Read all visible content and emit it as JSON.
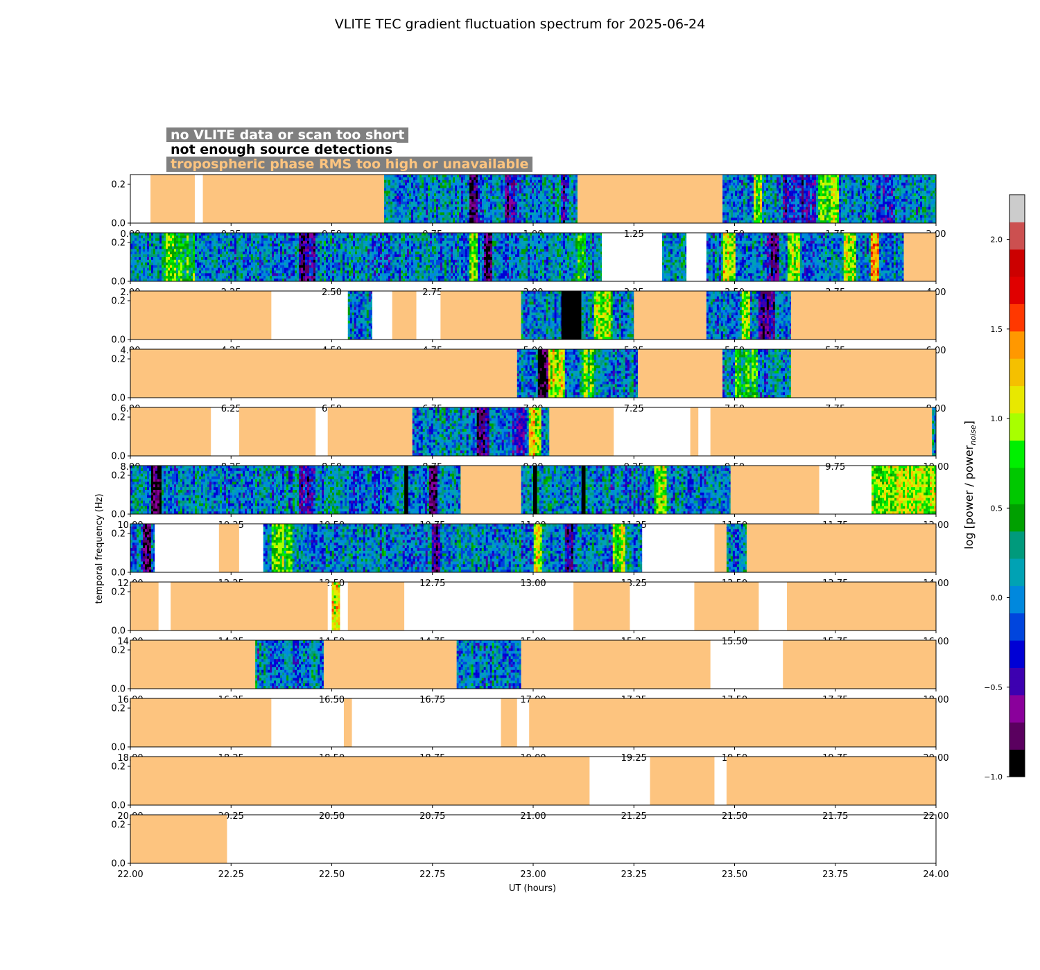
{
  "page_title": "VLITE TEC gradient fluctuation spectrum for 2025-06-24",
  "legend": {
    "no_data": "no VLITE data or scan too short",
    "no_detections": "not enough source detections",
    "tropo": "tropospheric phase RMS too high or unavailable"
  },
  "colors": {
    "tropo": "#fdc47f",
    "no_data": "#ffffff",
    "no_detections": "#000000",
    "cmap": [
      "#000000",
      "#5a005f",
      "#8a009b",
      "#3d00b0",
      "#0000d5",
      "#0045dd",
      "#0088dd",
      "#00a2b4",
      "#009a7c",
      "#00a000",
      "#00c800",
      "#00f000",
      "#a8ff00",
      "#e8e800",
      "#f5c000",
      "#ff9800",
      "#ff3800",
      "#e00000",
      "#cc0000",
      "#cc5050",
      "#cccccc"
    ]
  },
  "chart_data": {
    "type": "heatmap",
    "title": "VLITE TEC gradient fluctuation spectrum for 2025-06-24",
    "xlabel": "UT (hours)",
    "ylabel": "temporal frequency (Hz)",
    "ylim": [
      0,
      0.25
    ],
    "yticks": [
      0.0,
      0.2
    ],
    "ytick_labels": [
      "0.0",
      "0.2"
    ],
    "colorbar": {
      "label_base": "log [power / power",
      "label_sub": "noise",
      "label_close": "]",
      "range": [
        -1.0,
        2.25
      ],
      "ticks": [
        -1.0,
        -0.5,
        0.0,
        0.5,
        1.0,
        1.5,
        2.0
      ],
      "tick_labels": [
        "−1.0",
        "−0.5",
        "0.0",
        "0.5",
        "1.0",
        "1.5",
        "2.0"
      ]
    },
    "panels": [
      {
        "xlim": [
          0,
          2
        ],
        "xticks": [
          0,
          0.25,
          0.5,
          0.75,
          1.0,
          1.25,
          1.5,
          1.75,
          2.0
        ],
        "xtick_labels": [
          "0.00",
          "0.25",
          "0.50",
          "0.75",
          "1.00",
          "1.25",
          "1.50",
          "1.75",
          "2.00"
        ],
        "segments": [
          [
            "none",
            0.0,
            0.05
          ],
          [
            "tropo",
            0.05,
            0.16
          ],
          [
            "none",
            0.16,
            0.18
          ],
          [
            "tropo",
            0.18,
            0.63
          ],
          [
            "spec",
            0.63,
            1.11
          ],
          [
            "tropo",
            1.11,
            1.47
          ],
          [
            "spec",
            1.47,
            2.0
          ]
        ],
        "bands": [
          [
            0.84,
            0.86,
            -0.6
          ],
          [
            0.93,
            0.96,
            -0.5
          ],
          [
            1.07,
            1.08,
            -0.5
          ],
          [
            1.55,
            1.57,
            0.9
          ],
          [
            1.62,
            1.7,
            -0.4
          ],
          [
            1.71,
            1.76,
            0.8
          ],
          [
            1.85,
            1.9,
            -0.3
          ]
        ]
      },
      {
        "xlim": [
          2,
          4
        ],
        "xticks": [
          2,
          2.25,
          2.5,
          2.75,
          3.0,
          3.25,
          3.5,
          3.75,
          4.0
        ],
        "xtick_labels": [
          "2.00",
          "2.25",
          "2.50",
          "2.75",
          "3.00",
          "3.25",
          "3.50",
          "3.75",
          "4.00"
        ],
        "segments": [
          [
            "spec",
            2.0,
            3.17
          ],
          [
            "none",
            3.17,
            3.32
          ],
          [
            "spec",
            3.32,
            3.38
          ],
          [
            "none",
            3.38,
            3.43
          ],
          [
            "spec",
            3.43,
            3.92
          ],
          [
            "tropo",
            3.92,
            4.0
          ]
        ],
        "bands": [
          [
            2.08,
            2.16,
            0.6
          ],
          [
            2.42,
            2.46,
            -0.5
          ],
          [
            2.84,
            2.86,
            0.9
          ],
          [
            2.88,
            2.9,
            -0.7
          ],
          [
            3.11,
            3.13,
            0.8
          ],
          [
            3.47,
            3.5,
            1.0
          ],
          [
            3.58,
            3.61,
            -0.6
          ],
          [
            3.63,
            3.66,
            0.9
          ],
          [
            3.77,
            3.8,
            1.0
          ],
          [
            3.84,
            3.86,
            1.2
          ]
        ]
      },
      {
        "xlim": [
          4,
          6
        ],
        "xticks": [
          4,
          4.25,
          4.5,
          4.75,
          5.0,
          5.25,
          5.5,
          5.75,
          6.0
        ],
        "xtick_labels": [
          "4.00",
          "4.25",
          "4.50",
          "4.75",
          "5.00",
          "5.25",
          "5.50",
          "5.75",
          "6.00"
        ],
        "segments": [
          [
            "tropo",
            4.0,
            4.35
          ],
          [
            "none",
            4.35,
            4.54
          ],
          [
            "spec",
            4.54,
            4.6
          ],
          [
            "none",
            4.6,
            4.65
          ],
          [
            "tropo",
            4.65,
            4.71
          ],
          [
            "none",
            4.71,
            4.77
          ],
          [
            "tropo",
            4.77,
            4.97
          ],
          [
            "spec",
            4.97,
            5.07
          ],
          [
            "nodet",
            5.07,
            5.12
          ],
          [
            "spec",
            5.12,
            5.25
          ],
          [
            "tropo",
            5.25,
            5.43
          ],
          [
            "spec",
            5.43,
            5.64
          ],
          [
            "tropo",
            5.64,
            6.0
          ]
        ],
        "bands": [
          [
            5.15,
            5.2,
            0.8
          ],
          [
            5.52,
            5.54,
            1.0
          ],
          [
            5.56,
            5.6,
            -0.6
          ]
        ]
      },
      {
        "xlim": [
          6,
          8
        ],
        "xticks": [
          6,
          6.25,
          6.5,
          6.75,
          7.0,
          7.25,
          7.5,
          7.75,
          8.0
        ],
        "xtick_labels": [
          "6.00",
          "6.25",
          "6.50",
          "6.75",
          "7.00",
          "7.25",
          "7.50",
          "7.75",
          "8.00"
        ],
        "segments": [
          [
            "tropo",
            6.0,
            6.96
          ],
          [
            "spec",
            6.96,
            7.26
          ],
          [
            "tropo",
            7.26,
            7.47
          ],
          [
            "spec",
            7.47,
            7.64
          ],
          [
            "tropo",
            7.64,
            8.0
          ]
        ],
        "bands": [
          [
            7.01,
            7.04,
            -0.8
          ],
          [
            7.04,
            7.08,
            1.0
          ],
          [
            7.12,
            7.15,
            0.7
          ],
          [
            7.5,
            7.56,
            0.6
          ]
        ]
      },
      {
        "xlim": [
          8,
          10
        ],
        "xticks": [
          8,
          8.25,
          8.5,
          8.75,
          9.0,
          9.25,
          9.5,
          9.75,
          10.0
        ],
        "xtick_labels": [
          "8.00",
          "8.25",
          "8.50",
          "8.75",
          "9.00",
          "9.25",
          "9.50",
          "9.75",
          "10.00"
        ],
        "segments": [
          [
            "tropo",
            8.0,
            8.2
          ],
          [
            "none",
            8.2,
            8.27
          ],
          [
            "tropo",
            8.27,
            8.46
          ],
          [
            "none",
            8.46,
            8.49
          ],
          [
            "tropo",
            8.49,
            8.7
          ],
          [
            "spec",
            8.7,
            9.04
          ],
          [
            "tropo",
            9.04,
            9.2
          ],
          [
            "none",
            9.2,
            9.39
          ],
          [
            "tropo",
            9.39,
            9.41
          ],
          [
            "none",
            9.41,
            9.44
          ],
          [
            "tropo",
            9.44,
            9.99
          ],
          [
            "spec",
            9.99,
            10.0
          ]
        ],
        "bands": [
          [
            8.86,
            8.89,
            -0.6
          ],
          [
            8.95,
            8.98,
            -0.4
          ],
          [
            8.99,
            9.02,
            1.0
          ]
        ]
      },
      {
        "xlim": [
          10,
          12
        ],
        "xticks": [
          10,
          10.25,
          10.5,
          10.75,
          11.0,
          11.25,
          11.5,
          11.75,
          12.0
        ],
        "xtick_labels": [
          "10.00",
          "10.25",
          "10.50",
          "10.75",
          "11.00",
          "11.25",
          "11.50",
          "11.75",
          "12.00"
        ],
        "segments": [
          [
            "spec",
            10.0,
            10.68
          ],
          [
            "nodet",
            10.68,
            10.69
          ],
          [
            "spec",
            10.69,
            10.82
          ],
          [
            "tropo",
            10.82,
            10.97
          ],
          [
            "spec",
            10.97,
            11.0
          ],
          [
            "nodet",
            11.0,
            11.01
          ],
          [
            "spec",
            11.01,
            11.12
          ],
          [
            "nodet",
            11.12,
            11.13
          ],
          [
            "spec",
            11.13,
            11.49
          ],
          [
            "tropo",
            11.49,
            11.71
          ],
          [
            "none",
            11.71,
            11.84
          ],
          [
            "spec",
            11.84,
            12.0
          ]
        ],
        "bands": [
          [
            10.05,
            10.08,
            -0.8
          ],
          [
            10.42,
            10.46,
            -0.5
          ],
          [
            10.74,
            10.76,
            -0.7
          ],
          [
            11.3,
            11.33,
            0.8
          ],
          [
            11.84,
            12.0,
            0.95
          ]
        ]
      },
      {
        "xlim": [
          12,
          14
        ],
        "xticks": [
          12,
          12.25,
          12.5,
          12.75,
          13.0,
          13.25,
          13.5,
          13.75,
          14.0
        ],
        "xtick_labels": [
          "12.00",
          "12.25",
          "12.50",
          "12.75",
          "13.00",
          "13.25",
          "13.50",
          "13.75",
          "14.00"
        ],
        "segments": [
          [
            "spec",
            12.0,
            12.06
          ],
          [
            "none",
            12.06,
            12.22
          ],
          [
            "tropo",
            12.22,
            12.27
          ],
          [
            "none",
            12.27,
            12.33
          ],
          [
            "spec",
            12.33,
            13.27
          ],
          [
            "none",
            12.27,
            12.27
          ],
          [
            "none",
            13.27,
            13.45
          ],
          [
            "tropo",
            13.45,
            13.48
          ],
          [
            "spec",
            13.48,
            13.53
          ],
          [
            "tropo",
            13.53,
            14.0
          ]
        ],
        "bands": [
          [
            12.03,
            12.05,
            -0.8
          ],
          [
            12.35,
            12.4,
            0.7
          ],
          [
            12.75,
            12.77,
            -0.6
          ],
          [
            13.0,
            13.02,
            1.0
          ],
          [
            13.08,
            13.1,
            -0.6
          ],
          [
            13.2,
            13.23,
            0.8
          ]
        ]
      },
      {
        "xlim": [
          14,
          16
        ],
        "xticks": [
          14,
          14.25,
          14.5,
          14.75,
          15.0,
          15.25,
          15.5,
          15.75,
          16.0
        ],
        "xtick_labels": [
          "14.00",
          "14.25",
          "14.50",
          "14.75",
          "15.00",
          "15.25",
          "15.50",
          "15.75",
          "16.00"
        ],
        "segments": [
          [
            "tropo",
            14.0,
            14.07
          ],
          [
            "none",
            14.07,
            14.1
          ],
          [
            "tropo",
            14.1,
            14.49
          ],
          [
            "none",
            14.49,
            14.5
          ],
          [
            "spec",
            14.5,
            14.52
          ],
          [
            "none",
            14.52,
            14.54
          ],
          [
            "tropo",
            14.54,
            14.68
          ],
          [
            "none",
            14.68,
            15.1
          ],
          [
            "tropo",
            15.1,
            15.24
          ],
          [
            "none",
            15.24,
            15.4
          ],
          [
            "tropo",
            15.4,
            15.56
          ],
          [
            "none",
            15.56,
            15.63
          ],
          [
            "tropo",
            15.63,
            16.0
          ]
        ],
        "bands": [
          [
            14.5,
            14.52,
            1.0
          ]
        ]
      },
      {
        "xlim": [
          16,
          18
        ],
        "xticks": [
          16,
          16.25,
          16.5,
          16.75,
          17.0,
          17.25,
          17.5,
          17.75,
          18.0
        ],
        "xtick_labels": [
          "16.00",
          "16.25",
          "16.50",
          "16.75",
          "17.00",
          "17.25",
          "17.50",
          "17.75",
          "18.00"
        ],
        "segments": [
          [
            "tropo",
            16.0,
            16.31
          ],
          [
            "spec",
            16.31,
            16.48
          ],
          [
            "tropo",
            16.48,
            16.81
          ],
          [
            "spec",
            16.81,
            16.97
          ],
          [
            "tropo",
            16.97,
            17.44
          ],
          [
            "none",
            17.44,
            17.62
          ],
          [
            "tropo",
            17.62,
            18.0
          ]
        ],
        "bands": []
      },
      {
        "xlim": [
          18,
          20
        ],
        "xticks": [
          18,
          18.25,
          18.5,
          18.75,
          19.0,
          19.25,
          19.5,
          19.75,
          20.0
        ],
        "xtick_labels": [
          "18.00",
          "18.25",
          "18.50",
          "18.75",
          "19.00",
          "19.25",
          "19.50",
          "19.75",
          "20.00"
        ],
        "segments": [
          [
            "tropo",
            18.0,
            18.35
          ],
          [
            "none",
            18.35,
            18.53
          ],
          [
            "tropo",
            18.53,
            18.55
          ],
          [
            "none",
            18.55,
            18.92
          ],
          [
            "tropo",
            18.92,
            18.96
          ],
          [
            "none",
            18.96,
            18.99
          ],
          [
            "tropo",
            18.99,
            20.0
          ]
        ],
        "bands": []
      },
      {
        "xlim": [
          20,
          22
        ],
        "xticks": [
          20,
          20.25,
          20.5,
          20.75,
          21.0,
          21.25,
          21.5,
          21.75,
          22.0
        ],
        "xtick_labels": [
          "20.00",
          "20.25",
          "20.50",
          "20.75",
          "21.00",
          "21.25",
          "21.50",
          "21.75",
          "22.00"
        ],
        "segments": [
          [
            "tropo",
            20.0,
            21.14
          ],
          [
            "none",
            21.14,
            21.29
          ],
          [
            "tropo",
            21.29,
            21.45
          ],
          [
            "none",
            21.45,
            21.48
          ],
          [
            "tropo",
            21.48,
            22.0
          ]
        ],
        "bands": []
      },
      {
        "xlim": [
          22,
          24
        ],
        "xticks": [
          22,
          22.25,
          22.5,
          22.75,
          23.0,
          23.25,
          23.5,
          23.75,
          24.0
        ],
        "xtick_labels": [
          "22.00",
          "22.25",
          "22.50",
          "22.75",
          "23.00",
          "23.25",
          "23.50",
          "23.75",
          "24.00"
        ],
        "segments": [
          [
            "tropo",
            22.0,
            22.24
          ],
          [
            "none",
            22.24,
            24.0
          ]
        ],
        "bands": []
      }
    ]
  }
}
